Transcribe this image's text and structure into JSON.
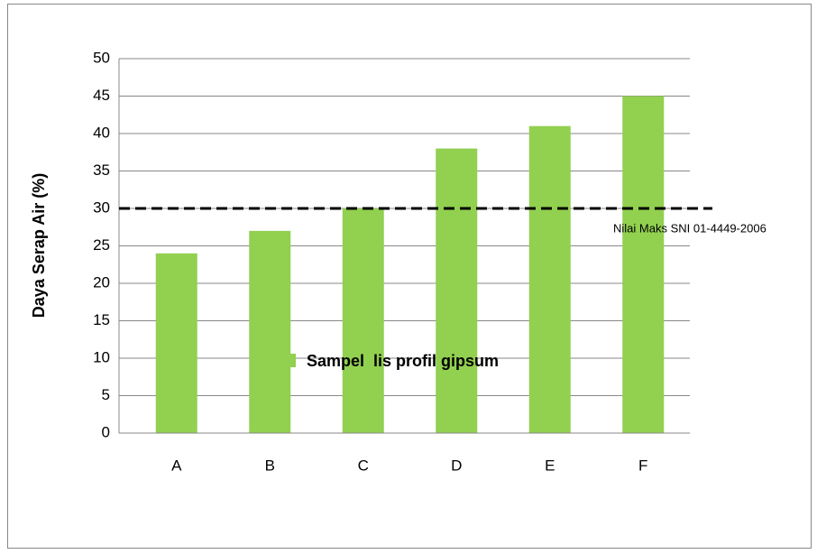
{
  "chart_data": {
    "type": "bar",
    "y_label": "Daya Serap Air (%)",
    "categories": [
      "A",
      "B",
      "C",
      "D",
      "E",
      "F"
    ],
    "series": [
      {
        "name": "Sampel  lis profil gipsum",
        "color": "#92d050",
        "values": [
          24,
          27,
          30,
          38,
          41,
          45
        ]
      }
    ],
    "ylim": [
      0,
      50
    ],
    "yticks": [
      0,
      5,
      10,
      15,
      20,
      25,
      30,
      35,
      40,
      45,
      50
    ],
    "grid": true,
    "reference_line": {
      "value": 30,
      "label": "Nilai Maks SNI 01-4449-2006"
    },
    "legend": "bottom"
  }
}
